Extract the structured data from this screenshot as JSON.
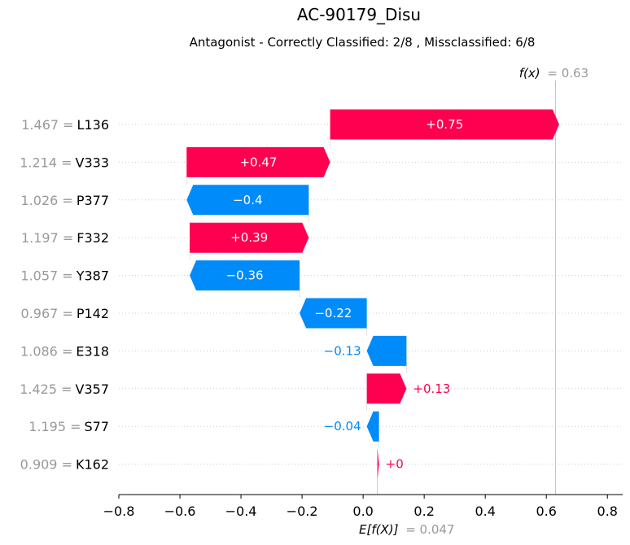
{
  "chart_data": {
    "type": "waterfall",
    "title": "AC-90179_Disu",
    "subtitle": "Antagonist - Correctly Classified: 2/8 , Missclassified: 6/8",
    "base_value": 0.047,
    "base_value_label": "E[f(X)]",
    "base_value_text": "= 0.047",
    "output_value": 0.63,
    "output_value_label": "f(x)",
    "output_value_text": "= 0.63",
    "xlim": [
      -0.8,
      0.85
    ],
    "xticks": [
      -0.8,
      -0.6,
      -0.4,
      -0.2,
      0.0,
      0.2,
      0.4,
      0.6,
      0.8
    ],
    "xtick_labels": [
      "−0.8",
      "−0.6",
      "−0.4",
      "−0.2",
      "0.0",
      "0.2",
      "0.4",
      "0.6",
      "0.8"
    ],
    "features": [
      {
        "name": "L136",
        "value_text": "1.467 =",
        "contribution": 0.75,
        "label": "+0.75"
      },
      {
        "name": "V333",
        "value_text": "1.214 =",
        "contribution": 0.47,
        "label": "+0.47"
      },
      {
        "name": "P377",
        "value_text": "1.026 =",
        "contribution": -0.4,
        "label": "−0.4"
      },
      {
        "name": "F332",
        "value_text": "1.197 =",
        "contribution": 0.39,
        "label": "+0.39"
      },
      {
        "name": "Y387",
        "value_text": "1.057 =",
        "contribution": -0.36,
        "label": "−0.36"
      },
      {
        "name": "P142",
        "value_text": "0.967 =",
        "contribution": -0.22,
        "label": "−0.22"
      },
      {
        "name": "E318",
        "value_text": "1.086 =",
        "contribution": -0.13,
        "label": "−0.13"
      },
      {
        "name": "V357",
        "value_text": "1.425 =",
        "contribution": 0.13,
        "label": "+0.13"
      },
      {
        "name": "S77",
        "value_text": "1.195 =",
        "contribution": -0.04,
        "label": "−0.04"
      },
      {
        "name": "K162",
        "value_text": "0.909 =",
        "contribution": 0.005,
        "label": "+0"
      }
    ],
    "colors": {
      "positive": "#ff0051",
      "negative": "#008bfb"
    }
  }
}
